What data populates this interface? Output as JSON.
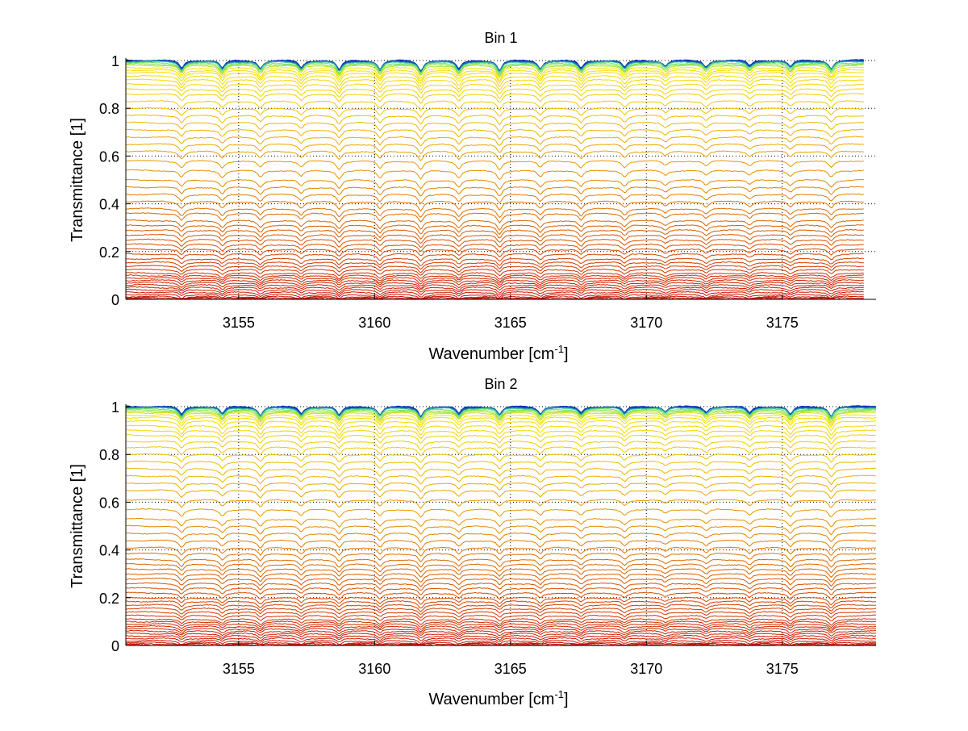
{
  "chart_data": [
    {
      "type": "line",
      "title": "Bin 1",
      "xlabel": "Wavenumber [cm",
      "xlabel_sup": "-1",
      "xlabel_end": "]",
      "ylabel": "Transmittance [1]",
      "xlim": [
        3150.85,
        3178.45
      ],
      "ylim": [
        0,
        1
      ],
      "x_data_range": [
        3150.85,
        3178.0
      ],
      "xticks": [
        "3155",
        "3160",
        "3165",
        "3170",
        "3175"
      ],
      "xtick_values": [
        3155,
        3160,
        3165,
        3170,
        3175
      ],
      "yticks": [
        "0",
        "0.2",
        "0.4",
        "0.6",
        "0.8",
        "1"
      ],
      "ytick_values": [
        0,
        0.2,
        0.4,
        0.6,
        0.8,
        1
      ],
      "grid": true,
      "absorption_lines_cm1": [
        3152.9,
        3154.4,
        3155.8,
        3157.3,
        3158.7,
        3160.2,
        3161.7,
        3163.1,
        3164.6,
        3166.1,
        3167.6,
        3169.2,
        3170.7,
        3172.2,
        3173.8,
        3175.3,
        3176.8
      ],
      "line_strengths": [
        1.0,
        1.0,
        1.0,
        0.9,
        1.2,
        1.1,
        1.3,
        1.1,
        1.3,
        1.0,
        1.0,
        0.9,
        0.7,
        0.8,
        0.7,
        0.8,
        1.0
      ],
      "series_baseline_transmittance": [
        1.0,
        0.998,
        0.995,
        0.99,
        0.985,
        0.98,
        0.97,
        0.96,
        0.95,
        0.935,
        0.92,
        0.9,
        0.88,
        0.86,
        0.83,
        0.8,
        0.77,
        0.74,
        0.71,
        0.68,
        0.65,
        0.62,
        0.58,
        0.54,
        0.5,
        0.47,
        0.44,
        0.41,
        0.38,
        0.36,
        0.33,
        0.31,
        0.29,
        0.27,
        0.25,
        0.23,
        0.21,
        0.19,
        0.17,
        0.155,
        0.14,
        0.125,
        0.11,
        0.1,
        0.09,
        0.08,
        0.07,
        0.06,
        0.05,
        0.04,
        0.03,
        0.02,
        0.012,
        0.006,
        0.002
      ]
    },
    {
      "type": "line",
      "title": "Bin 2",
      "xlabel": "Wavenumber [cm",
      "xlabel_sup": "-1",
      "xlabel_end": "]",
      "ylabel": "Transmittance [1]",
      "xlim": [
        3150.85,
        3178.45
      ],
      "ylim": [
        0,
        1
      ],
      "x_data_range": [
        3150.85,
        3178.45
      ],
      "xticks": [
        "3155",
        "3160",
        "3165",
        "3170",
        "3175"
      ],
      "xtick_values": [
        3155,
        3160,
        3165,
        3170,
        3175
      ],
      "yticks": [
        "0",
        "0.2",
        "0.4",
        "0.6",
        "0.8",
        "1"
      ],
      "ytick_values": [
        0,
        0.2,
        0.4,
        0.6,
        0.8,
        1
      ],
      "grid": true,
      "absorption_lines_cm1": [
        3152.9,
        3154.4,
        3155.8,
        3157.3,
        3158.7,
        3160.2,
        3161.7,
        3163.1,
        3164.6,
        3166.1,
        3167.6,
        3169.2,
        3170.7,
        3172.2,
        3173.8,
        3175.3,
        3176.8
      ],
      "line_strengths": [
        1.0,
        0.9,
        1.1,
        0.9,
        1.1,
        1.0,
        1.2,
        0.9,
        1.0,
        0.9,
        0.8,
        0.8,
        0.6,
        0.7,
        0.8,
        1.0,
        1.2
      ],
      "series_baseline_transmittance": [
        1.0,
        0.998,
        0.995,
        0.99,
        0.985,
        0.98,
        0.975,
        0.965,
        0.955,
        0.94,
        0.92,
        0.9,
        0.88,
        0.855,
        0.83,
        0.8,
        0.77,
        0.74,
        0.71,
        0.68,
        0.65,
        0.61,
        0.57,
        0.53,
        0.5,
        0.47,
        0.44,
        0.41,
        0.385,
        0.36,
        0.34,
        0.32,
        0.3,
        0.28,
        0.26,
        0.24,
        0.22,
        0.2,
        0.185,
        0.17,
        0.155,
        0.14,
        0.125,
        0.11,
        0.1,
        0.09,
        0.08,
        0.07,
        0.06,
        0.05,
        0.04,
        0.03,
        0.02,
        0.012,
        0.006,
        0.002
      ]
    }
  ]
}
